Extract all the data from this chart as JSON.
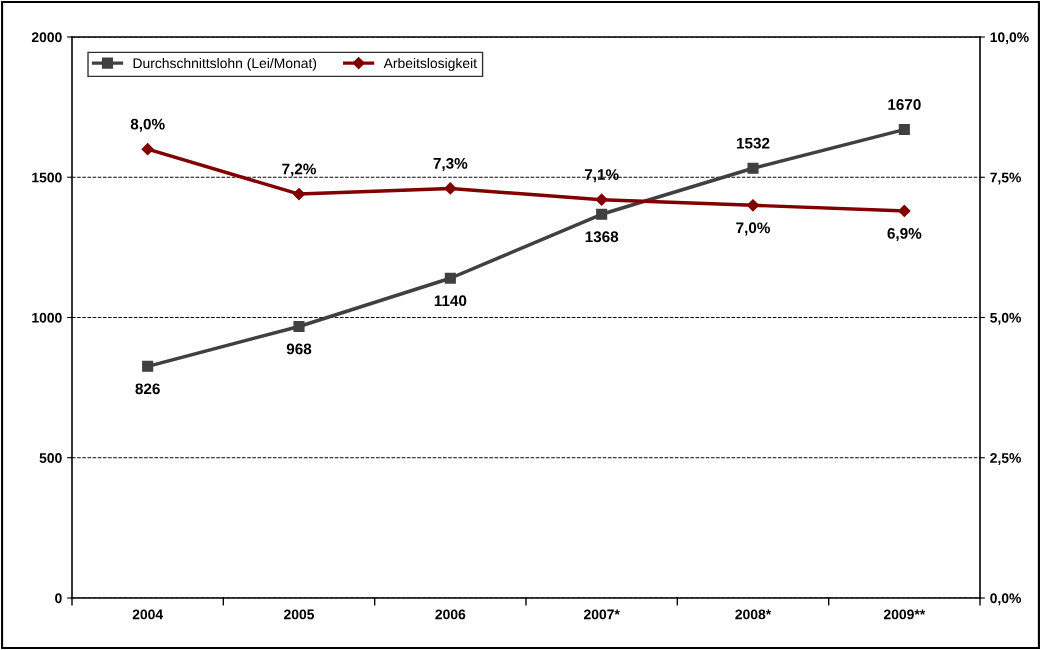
{
  "chart_data": {
    "type": "line",
    "categories": [
      "2004",
      "2005",
      "2006",
      "2007*",
      "2008*",
      "2009**"
    ],
    "series": [
      {
        "name": "Durchschnittslohn (Lei/Monat)",
        "color": "#404040",
        "marker": "square",
        "values": [
          826,
          968,
          1140,
          1368,
          1532,
          1670
        ],
        "value_labels": [
          "826",
          "968",
          "1140",
          "1368",
          "1532",
          "1670"
        ]
      },
      {
        "name": "Arbeitslosigkeit",
        "color": "#800000",
        "marker": "diamond",
        "axis": "y2",
        "values": [
          8.0,
          7.2,
          7.3,
          7.1,
          7.0,
          6.9
        ],
        "value_labels": [
          "8,0%",
          "7,2%",
          "7,3%",
          "7,1%",
          "7,0%",
          "6,9%"
        ]
      }
    ],
    "ylim": [
      0,
      2000
    ],
    "yticks": [
      0,
      500,
      1000,
      1500,
      2000
    ],
    "y2lim": [
      0,
      10
    ],
    "y2ticks": [
      {
        "value": 0,
        "label": "0,0%"
      },
      {
        "value": 2.5,
        "label": "2,5%"
      },
      {
        "value": 5,
        "label": "5,0%"
      },
      {
        "value": 7.5,
        "label": "7,5%"
      },
      {
        "value": 10,
        "label": "10,0%"
      }
    ],
    "grid": "y",
    "legend": "top left",
    "line_style": "solid"
  }
}
